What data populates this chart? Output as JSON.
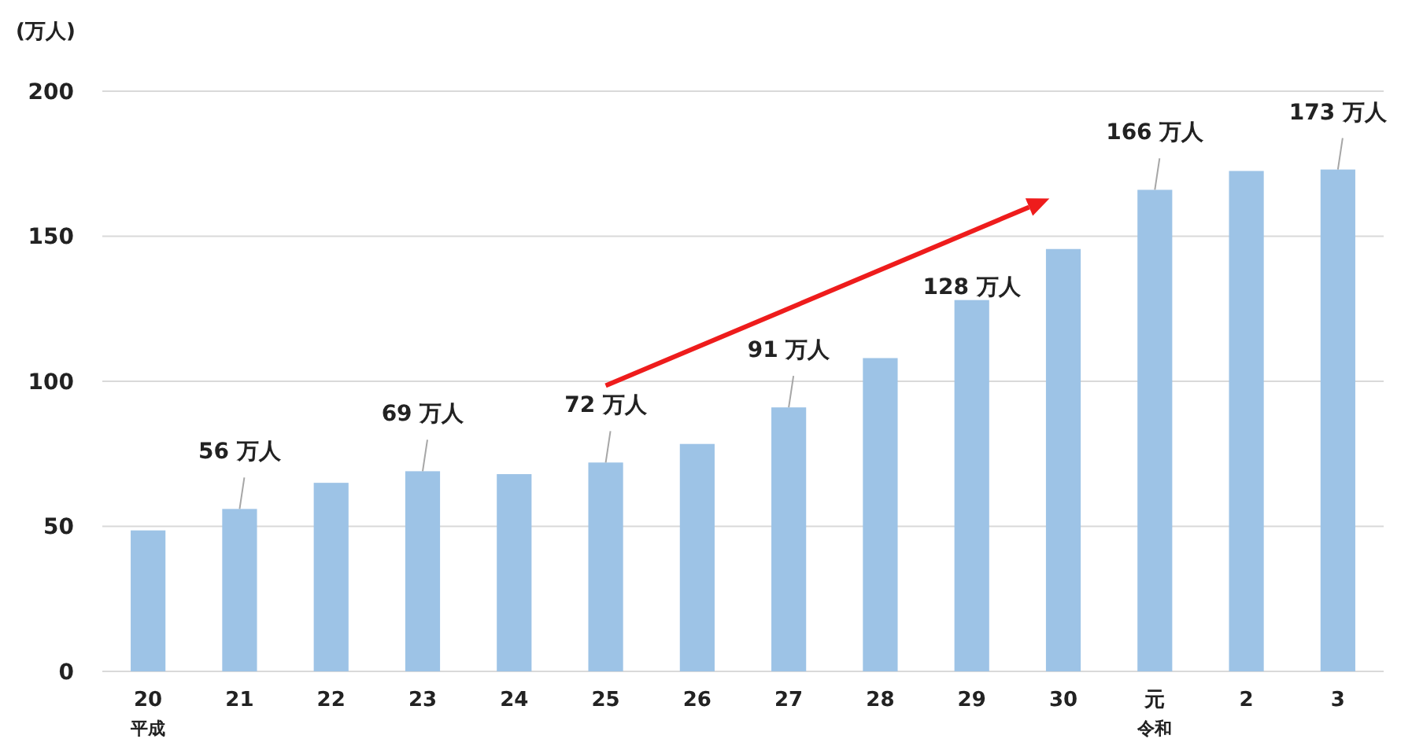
{
  "chart_data": {
    "type": "bar",
    "ylabel": "(万人)",
    "categories": [
      "20$_{平成}$",
      "21",
      "22",
      "23",
      "24",
      "25",
      "26",
      "27",
      "28",
      "29",
      "30",
      "元$_{令和}$",
      "2",
      "3"
    ],
    "values": [
      48.6,
      56,
      65,
      69,
      68,
      72,
      78.4,
      91,
      108,
      128,
      145.6,
      166,
      172.5,
      173
    ],
    "value_labels": [
      null,
      "56 万人",
      null,
      "69 万人",
      null,
      "72 万人",
      null,
      "91 万人",
      null,
      "128 万人",
      null,
      "166 万人",
      null,
      "173 万人"
    ],
    "color": "#9dc3e6",
    "ylim": [
      0,
      200
    ],
    "yticks": [
      0,
      50,
      100,
      150,
      200
    ],
    "grid": "y"
  }
}
